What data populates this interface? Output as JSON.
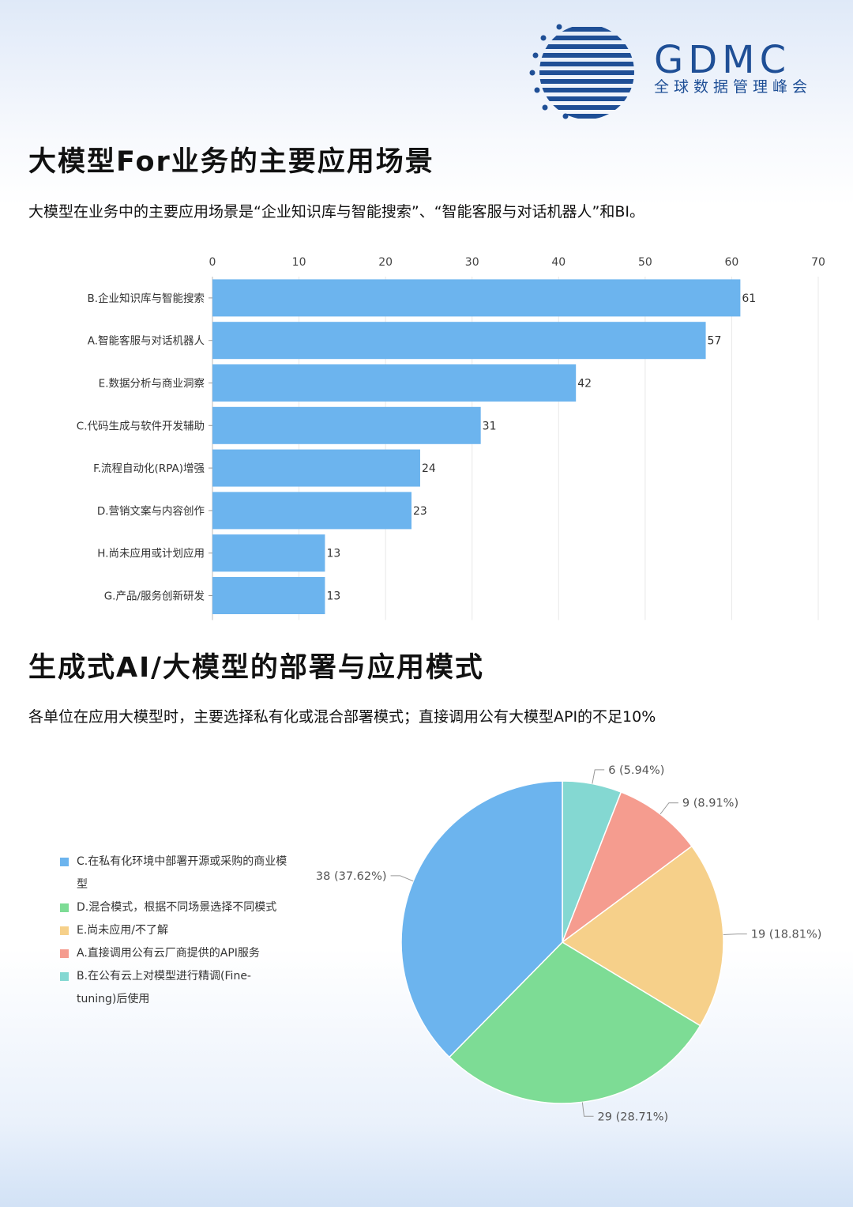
{
  "logo": {
    "name": "GDMC",
    "subtitle": "全球数据管理峰会"
  },
  "section1": {
    "title": "大模型For业务的主要应用场景",
    "subtitle": "大模型在业务中的主要应用场景是“企业知识库与智能搜索”、“智能客服与对话机器人”和BI。"
  },
  "section2": {
    "title": "生成式AI/大模型的部署与应用模式",
    "subtitle": "各单位在应用大模型时，主要选择私有化或混合部署模式；直接调用公有大模型API的不足10%"
  },
  "chart_data": [
    {
      "type": "bar",
      "orientation": "horizontal",
      "categories": [
        "B.企业知识库与智能搜索",
        "A.智能客服与对话机器人",
        "E.数据分析与商业洞察",
        "C.代码生成与软件开发辅助",
        "F.流程自动化(RPA)增强",
        "D.营销文案与内容创作",
        "H.尚未应用或计划应用",
        "G.产品/服务创新研发"
      ],
      "values": [
        61,
        57,
        42,
        31,
        24,
        23,
        13,
        13
      ],
      "xlim": [
        0,
        70
      ],
      "xticks": [
        0,
        10,
        20,
        30,
        40,
        50,
        60,
        70
      ],
      "axis_position": "top",
      "grid": true,
      "color": "#6cb4ee"
    },
    {
      "type": "pie",
      "slices": [
        {
          "label": "B.在公有云上对模型进行精调(Fine-tuning)后使用",
          "value": 6,
          "percent": "5.94%",
          "color": "#84d8d2"
        },
        {
          "label": "A.直接调用公有云厂商提供的API服务",
          "value": 9,
          "percent": "8.91%",
          "color": "#f59c8f"
        },
        {
          "label": "E.尚未应用/不了解",
          "value": 19,
          "percent": "18.81%",
          "color": "#f6d08a"
        },
        {
          "label": "D.混合模式，根据不同场景选择不同模式",
          "value": 29,
          "percent": "28.71%",
          "color": "#7ddc95"
        },
        {
          "label": "C.在私有化环境中部署开源或采购的商业模型",
          "value": 38,
          "percent": "37.62%",
          "color": "#6cb4ee"
        }
      ],
      "slice_labels": [
        "6 (5.94%)",
        "9 (8.91%)",
        "19 (18.81%)",
        "29 (28.71%)",
        "38 (37.62%)"
      ],
      "legend_order": [
        {
          "label": "C.在私有化环境中部署开源或采购的商业模型",
          "color": "#6cb4ee"
        },
        {
          "label": "D.混合模式，根据不同场景选择不同模式",
          "color": "#7ddc95"
        },
        {
          "label": "E.尚未应用/不了解",
          "color": "#f6d08a"
        },
        {
          "label": "A.直接调用公有云厂商提供的API服务",
          "color": "#f59c8f"
        },
        {
          "label": "B.在公有云上对模型进行精调(Fine-tuning)后使用",
          "color": "#84d8d2"
        }
      ],
      "legend_position": "left"
    }
  ]
}
